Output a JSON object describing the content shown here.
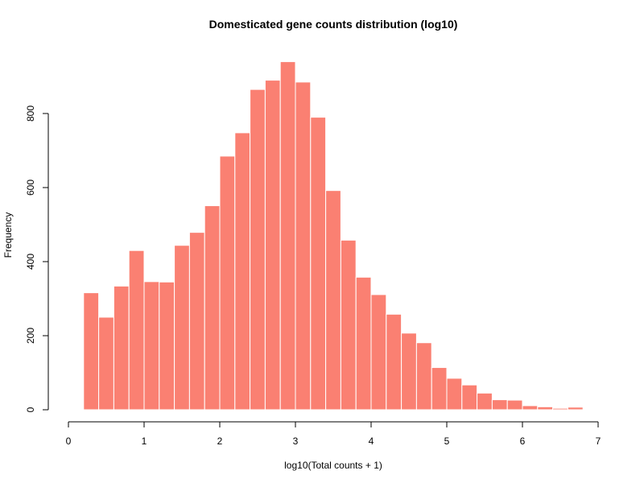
{
  "chart_data": {
    "type": "bar",
    "title": "Domesticated gene counts distribution (log10)",
    "xlabel": "log10(Total counts + 1)",
    "ylabel": "Frequency",
    "xlim": [
      0,
      7
    ],
    "ylim": [
      0,
      940
    ],
    "x_ticks": [
      0,
      1,
      2,
      3,
      4,
      5,
      6,
      7
    ],
    "y_ticks": [
      0,
      200,
      400,
      600,
      800
    ],
    "bin_width": 0.2,
    "bin_starts": [
      0.2,
      0.4,
      0.6,
      0.8,
      1.0,
      1.2,
      1.4,
      1.6,
      1.8,
      2.0,
      2.2,
      2.4,
      2.6,
      2.8,
      3.0,
      3.2,
      3.4,
      3.6,
      3.8,
      4.0,
      4.2,
      4.4,
      4.6,
      4.8,
      5.0,
      5.2,
      5.4,
      5.6,
      5.8,
      6.0,
      6.2,
      6.4,
      6.6
    ],
    "values": [
      316,
      250,
      334,
      430,
      346,
      345,
      444,
      479,
      551,
      685,
      748,
      865,
      890,
      940,
      885,
      790,
      592,
      458,
      358,
      311,
      258,
      207,
      181,
      114,
      85,
      67,
      45,
      27,
      26,
      11,
      8,
      4,
      7
    ],
    "bar_color": "#FA8072",
    "grid": false
  }
}
